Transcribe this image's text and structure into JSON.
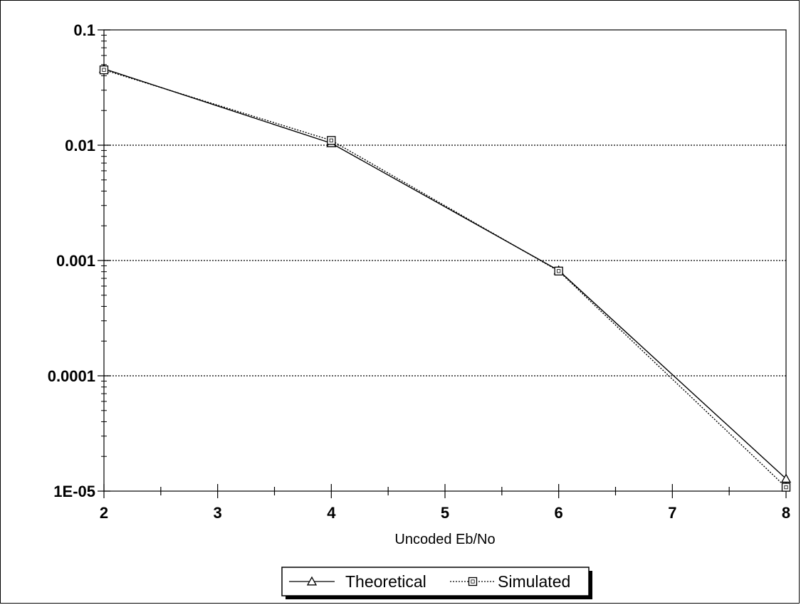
{
  "chart_data": {
    "type": "line",
    "xlabel": "Uncoded Eb/No",
    "ylabel": "",
    "x_ticks": [
      "2",
      "3",
      "4",
      "5",
      "6",
      "7",
      "8"
    ],
    "y_ticks": [
      "0.1",
      "0.01",
      "0.001",
      "0.0001",
      "1E-05"
    ],
    "xlim": [
      2,
      8
    ],
    "ylim": [
      1e-05,
      0.1
    ],
    "y_scale": "log",
    "grid": "horizontal dotted at decades",
    "legend_position": "bottom-center",
    "series": [
      {
        "name": "Theoretical",
        "marker": "triangle",
        "line_style": "solid",
        "x": [
          2,
          4,
          6,
          8
        ],
        "y": [
          0.046,
          0.0104,
          0.00082,
          1.28e-05
        ]
      },
      {
        "name": "Simulated",
        "marker": "square",
        "line_style": "dotted",
        "x": [
          2,
          4,
          6,
          8
        ],
        "y": [
          0.045,
          0.011,
          0.00081,
          1.08e-05
        ]
      }
    ]
  },
  "colors": {
    "line": "#000000",
    "grid": "#000000",
    "background": "#ffffff"
  }
}
